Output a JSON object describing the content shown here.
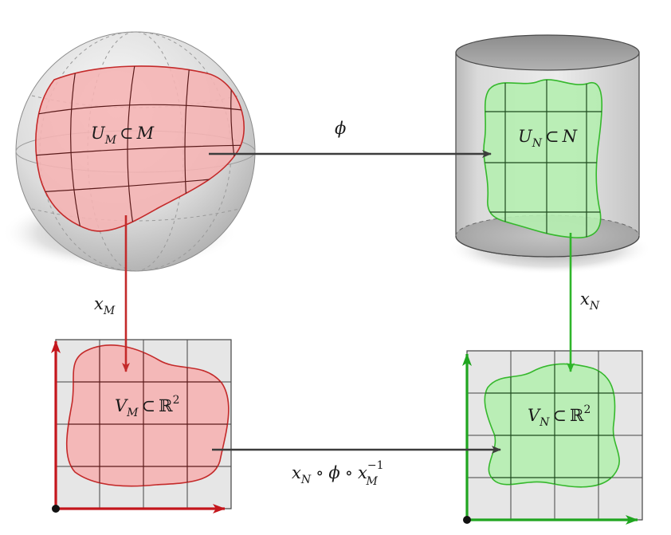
{
  "labels": {
    "u_m": {
      "main": "U",
      "sub": "M",
      "rel": "⊂",
      "set": "M"
    },
    "u_n": {
      "main": "U",
      "sub": "N",
      "rel": "⊂",
      "set": "N"
    },
    "v_m": {
      "main": "V",
      "sub": "M",
      "rel": "⊂",
      "set": "ℝ",
      "sup": "2"
    },
    "v_n": {
      "main": "V",
      "sub": "N",
      "rel": "⊂",
      "set": "ℝ",
      "sup": "2"
    },
    "phi": {
      "main": "ϕ"
    },
    "x_m": {
      "main": "x",
      "sub": "M"
    },
    "x_n": {
      "main": "x",
      "sub": "N"
    },
    "transition": {
      "a": "x",
      "a_sub": "N",
      "op1": "∘",
      "b": "ϕ",
      "op2": "∘",
      "c": "x",
      "c_sub": "M",
      "c_sup": "−1"
    }
  },
  "colors": {
    "red_fill": "#f5b3b3",
    "red_stroke": "#c42a2a",
    "green_fill": "#b5eeb0",
    "green_stroke": "#35b82c",
    "arrow_gray": "#3c3c3c",
    "axis_red": "#c4161c",
    "axis_green": "#1fa51f"
  }
}
